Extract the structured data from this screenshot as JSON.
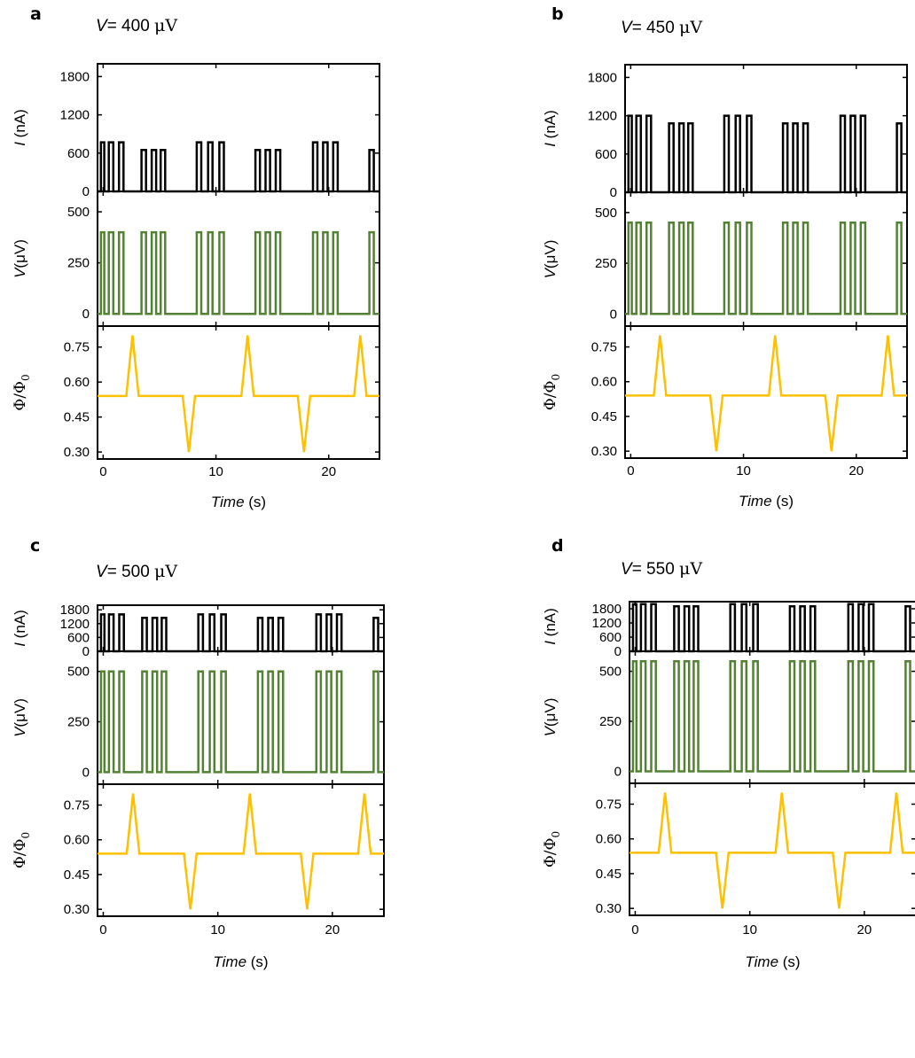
{
  "figure": {
    "series_colors": {
      "I": "#000000",
      "V": "#548235",
      "Phi": "#FFC000"
    }
  },
  "chart_data": [
    {
      "panel_letter": "a",
      "title": {
        "prefix": "V",
        "value": "= 400 ",
        "unit": "μV"
      },
      "type": "line",
      "subplots": [
        {
          "id": "I",
          "ylabel_var": "I",
          "ylabel_unit": " (nA)",
          "ylabel_sub": "",
          "ylim": [
            0,
            2000
          ],
          "yticks": [
            0,
            600,
            1200,
            1800
          ],
          "ytick_labels": [
            "0",
            "600",
            "1200",
            "1800"
          ],
          "color": "#000000",
          "baseline": 0,
          "pulse_pattern": "A",
          "pulse_heights": [
            770,
            650,
            770,
            650,
            770,
            650
          ]
        },
        {
          "id": "V",
          "ylabel_var": "V",
          "ylabel_unit": "(μV)",
          "ylabel_sub": "",
          "ylim": [
            -60,
            600
          ],
          "yticks": [
            0,
            250,
            500
          ],
          "ytick_labels": [
            "0",
            "250",
            "500"
          ],
          "color": "#548235",
          "baseline": 0,
          "pulse_pattern": "A",
          "pulse_heights": [
            400,
            400,
            400,
            400,
            400,
            400
          ]
        },
        {
          "id": "Phi",
          "ylabel_var": "Φ/Φ",
          "ylabel_unit": "",
          "ylabel_sub": "0",
          "ylim": [
            0.27,
            0.84
          ],
          "yticks": [
            0.3,
            0.45,
            0.6,
            0.75
          ],
          "ytick_labels": [
            "0.30",
            "0.45",
            "0.60",
            "0.75"
          ],
          "color": "#FFC000",
          "baseline": 0.54,
          "flux_pattern": "A",
          "spikes": [
            {
              "t": 2.6,
              "v": 0.8
            },
            {
              "t": 7.6,
              "v": 0.3
            },
            {
              "t": 12.8,
              "v": 0.8
            },
            {
              "t": 17.8,
              "v": 0.3
            },
            {
              "t": 22.8,
              "v": 0.8
            }
          ]
        }
      ],
      "x": {
        "xlim": [
          -0.5,
          24.5
        ],
        "xticks": [
          0,
          10,
          20
        ],
        "xtick_labels": [
          "0",
          "10",
          "20"
        ],
        "xlabel_var": "Time",
        "xlabel_unit": " (s)"
      }
    },
    {
      "panel_letter": "b",
      "title": {
        "prefix": "V",
        "value": "= 450 ",
        "unit": "μV"
      },
      "type": "line",
      "subplots": [
        {
          "id": "I",
          "ylabel_var": "I",
          "ylabel_unit": " (nA)",
          "ylabel_sub": "",
          "ylim": [
            0,
            2000
          ],
          "yticks": [
            0,
            600,
            1200,
            1800
          ],
          "ytick_labels": [
            "0",
            "600",
            "1200",
            "1800"
          ],
          "color": "#000000",
          "baseline": 0,
          "pulse_pattern": "A",
          "pulse_heights": [
            1200,
            1080,
            1200,
            1080,
            1200,
            1080
          ]
        },
        {
          "id": "V",
          "ylabel_var": "V",
          "ylabel_unit": "(μV)",
          "ylabel_sub": "",
          "ylim": [
            -60,
            600
          ],
          "yticks": [
            0,
            250,
            500
          ],
          "ytick_labels": [
            "0",
            "250",
            "500"
          ],
          "color": "#548235",
          "baseline": 0,
          "pulse_pattern": "A",
          "pulse_heights": [
            450,
            450,
            450,
            450,
            450,
            450
          ]
        },
        {
          "id": "Phi",
          "ylabel_var": "Φ/Φ",
          "ylabel_unit": "",
          "ylabel_sub": "0",
          "ylim": [
            0.27,
            0.84
          ],
          "yticks": [
            0.3,
            0.45,
            0.6,
            0.75
          ],
          "ytick_labels": [
            "0.30",
            "0.45",
            "0.60",
            "0.75"
          ],
          "color": "#FFC000",
          "baseline": 0.54,
          "flux_pattern": "A",
          "spikes": [
            {
              "t": 2.6,
              "v": 0.8
            },
            {
              "t": 7.6,
              "v": 0.3
            },
            {
              "t": 12.8,
              "v": 0.8
            },
            {
              "t": 17.8,
              "v": 0.3
            },
            {
              "t": 22.8,
              "v": 0.8
            }
          ]
        }
      ],
      "x": {
        "xlim": [
          -0.5,
          24.5
        ],
        "xticks": [
          0,
          10,
          20
        ],
        "xtick_labels": [
          "0",
          "10",
          "20"
        ],
        "xlabel_var": "Time",
        "xlabel_unit": " (s)"
      }
    },
    {
      "panel_letter": "c",
      "title": {
        "prefix": "V",
        "value": "= 500 ",
        "unit": "μV"
      },
      "type": "line",
      "subplots": [
        {
          "id": "I",
          "ylabel_var": "I",
          "ylabel_unit": " (nA)",
          "ylabel_sub": "",
          "ylim": [
            0,
            2000
          ],
          "yticks": [
            0,
            600,
            1200,
            1800
          ],
          "ytick_labels": [
            "0",
            "600",
            "1200",
            "1800"
          ],
          "color": "#000000",
          "baseline": 0,
          "pulse_pattern": "A",
          "pulse_heights": [
            1600,
            1450,
            1600,
            1450,
            1600,
            1450
          ]
        },
        {
          "id": "V",
          "ylabel_var": "V",
          "ylabel_unit": "(μV)",
          "ylabel_sub": "",
          "ylim": [
            -60,
            600
          ],
          "yticks": [
            0,
            250,
            500
          ],
          "ytick_labels": [
            "0",
            "250",
            "500"
          ],
          "color": "#548235",
          "baseline": 0,
          "pulse_pattern": "A",
          "pulse_heights": [
            500,
            500,
            500,
            500,
            500,
            500
          ]
        },
        {
          "id": "Phi",
          "ylabel_var": "Φ/Φ",
          "ylabel_unit": "",
          "ylabel_sub": "0",
          "ylim": [
            0.27,
            0.84
          ],
          "yticks": [
            0.3,
            0.45,
            0.6,
            0.75
          ],
          "ytick_labels": [
            "0.30",
            "0.45",
            "0.60",
            "0.75"
          ],
          "color": "#FFC000",
          "baseline": 0.54,
          "flux_pattern": "A",
          "spikes": [
            {
              "t": 2.6,
              "v": 0.8
            },
            {
              "t": 7.6,
              "v": 0.3
            },
            {
              "t": 12.8,
              "v": 0.8
            },
            {
              "t": 17.8,
              "v": 0.3
            },
            {
              "t": 22.8,
              "v": 0.8
            }
          ]
        }
      ],
      "x": {
        "xlim": [
          -0.5,
          24.5
        ],
        "xticks": [
          0,
          10,
          20
        ],
        "xtick_labels": [
          "0",
          "10",
          "20"
        ],
        "xlabel_var": "Time",
        "xlabel_unit": " (s)"
      }
    },
    {
      "panel_letter": "d",
      "title": {
        "prefix": "V",
        "value": "= 550 ",
        "unit": "μV"
      },
      "type": "line",
      "subplots": [
        {
          "id": "I",
          "ylabel_var": "I",
          "ylabel_unit": " (nA)",
          "ylabel_sub": "",
          "ylim": [
            0,
            2100
          ],
          "yticks": [
            0,
            600,
            1200,
            1800
          ],
          "ytick_labels": [
            "0",
            "600",
            "1200",
            "1800"
          ],
          "color": "#000000",
          "baseline": 0,
          "pulse_pattern": "A",
          "pulse_heights": [
            2000,
            1900,
            2000,
            1900,
            2000,
            1900
          ]
        },
        {
          "id": "V",
          "ylabel_var": "V",
          "ylabel_unit": "(μV)",
          "ylabel_sub": "",
          "ylim": [
            -60,
            600
          ],
          "yticks": [
            0,
            250,
            500
          ],
          "ytick_labels": [
            "0",
            "250",
            "500"
          ],
          "color": "#548235",
          "baseline": 0,
          "pulse_pattern": "A",
          "pulse_heights": [
            550,
            550,
            550,
            550,
            550,
            550
          ]
        },
        {
          "id": "Phi",
          "ylabel_var": "Φ/Φ",
          "ylabel_unit": "",
          "ylabel_sub": "0",
          "ylim": [
            0.27,
            0.84
          ],
          "yticks": [
            0.3,
            0.45,
            0.6,
            0.75
          ],
          "ytick_labels": [
            "0.30",
            "0.45",
            "0.60",
            "0.75"
          ],
          "color": "#FFC000",
          "baseline": 0.54,
          "flux_pattern": "A",
          "spikes": [
            {
              "t": 2.6,
              "v": 0.8
            },
            {
              "t": 7.6,
              "v": 0.3
            },
            {
              "t": 12.8,
              "v": 0.8
            },
            {
              "t": 17.8,
              "v": 0.3
            },
            {
              "t": 22.8,
              "v": 0.8
            }
          ]
        }
      ],
      "x": {
        "xlim": [
          -0.5,
          24.5
        ],
        "xticks": [
          0,
          10,
          20
        ],
        "xtick_labels": [
          "0",
          "10",
          "20"
        ],
        "xlabel_var": "Time",
        "xlabel_unit": " (s)"
      }
    }
  ]
}
